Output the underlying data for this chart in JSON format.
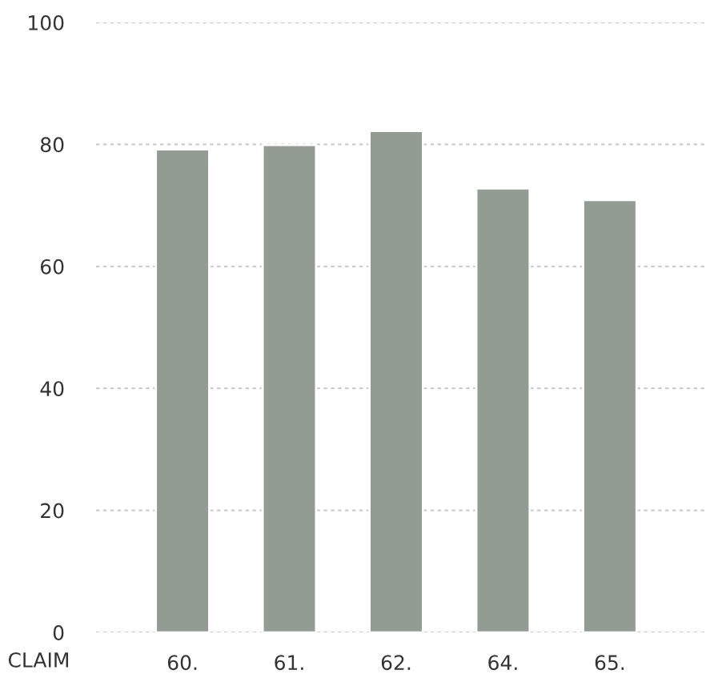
{
  "chart_data": {
    "type": "bar",
    "xlabel": "CLAIM",
    "categories": [
      "60.",
      "61.",
      "62.",
      "64.",
      "65."
    ],
    "values": [
      79.2,
      79.9,
      82.2,
      72.8,
      70.9
    ],
    "color": "#939c93",
    "ylim": [
      0,
      100
    ],
    "yticks": [
      0,
      20,
      40,
      60,
      80,
      100
    ],
    "grid": "y",
    "legend": false
  }
}
